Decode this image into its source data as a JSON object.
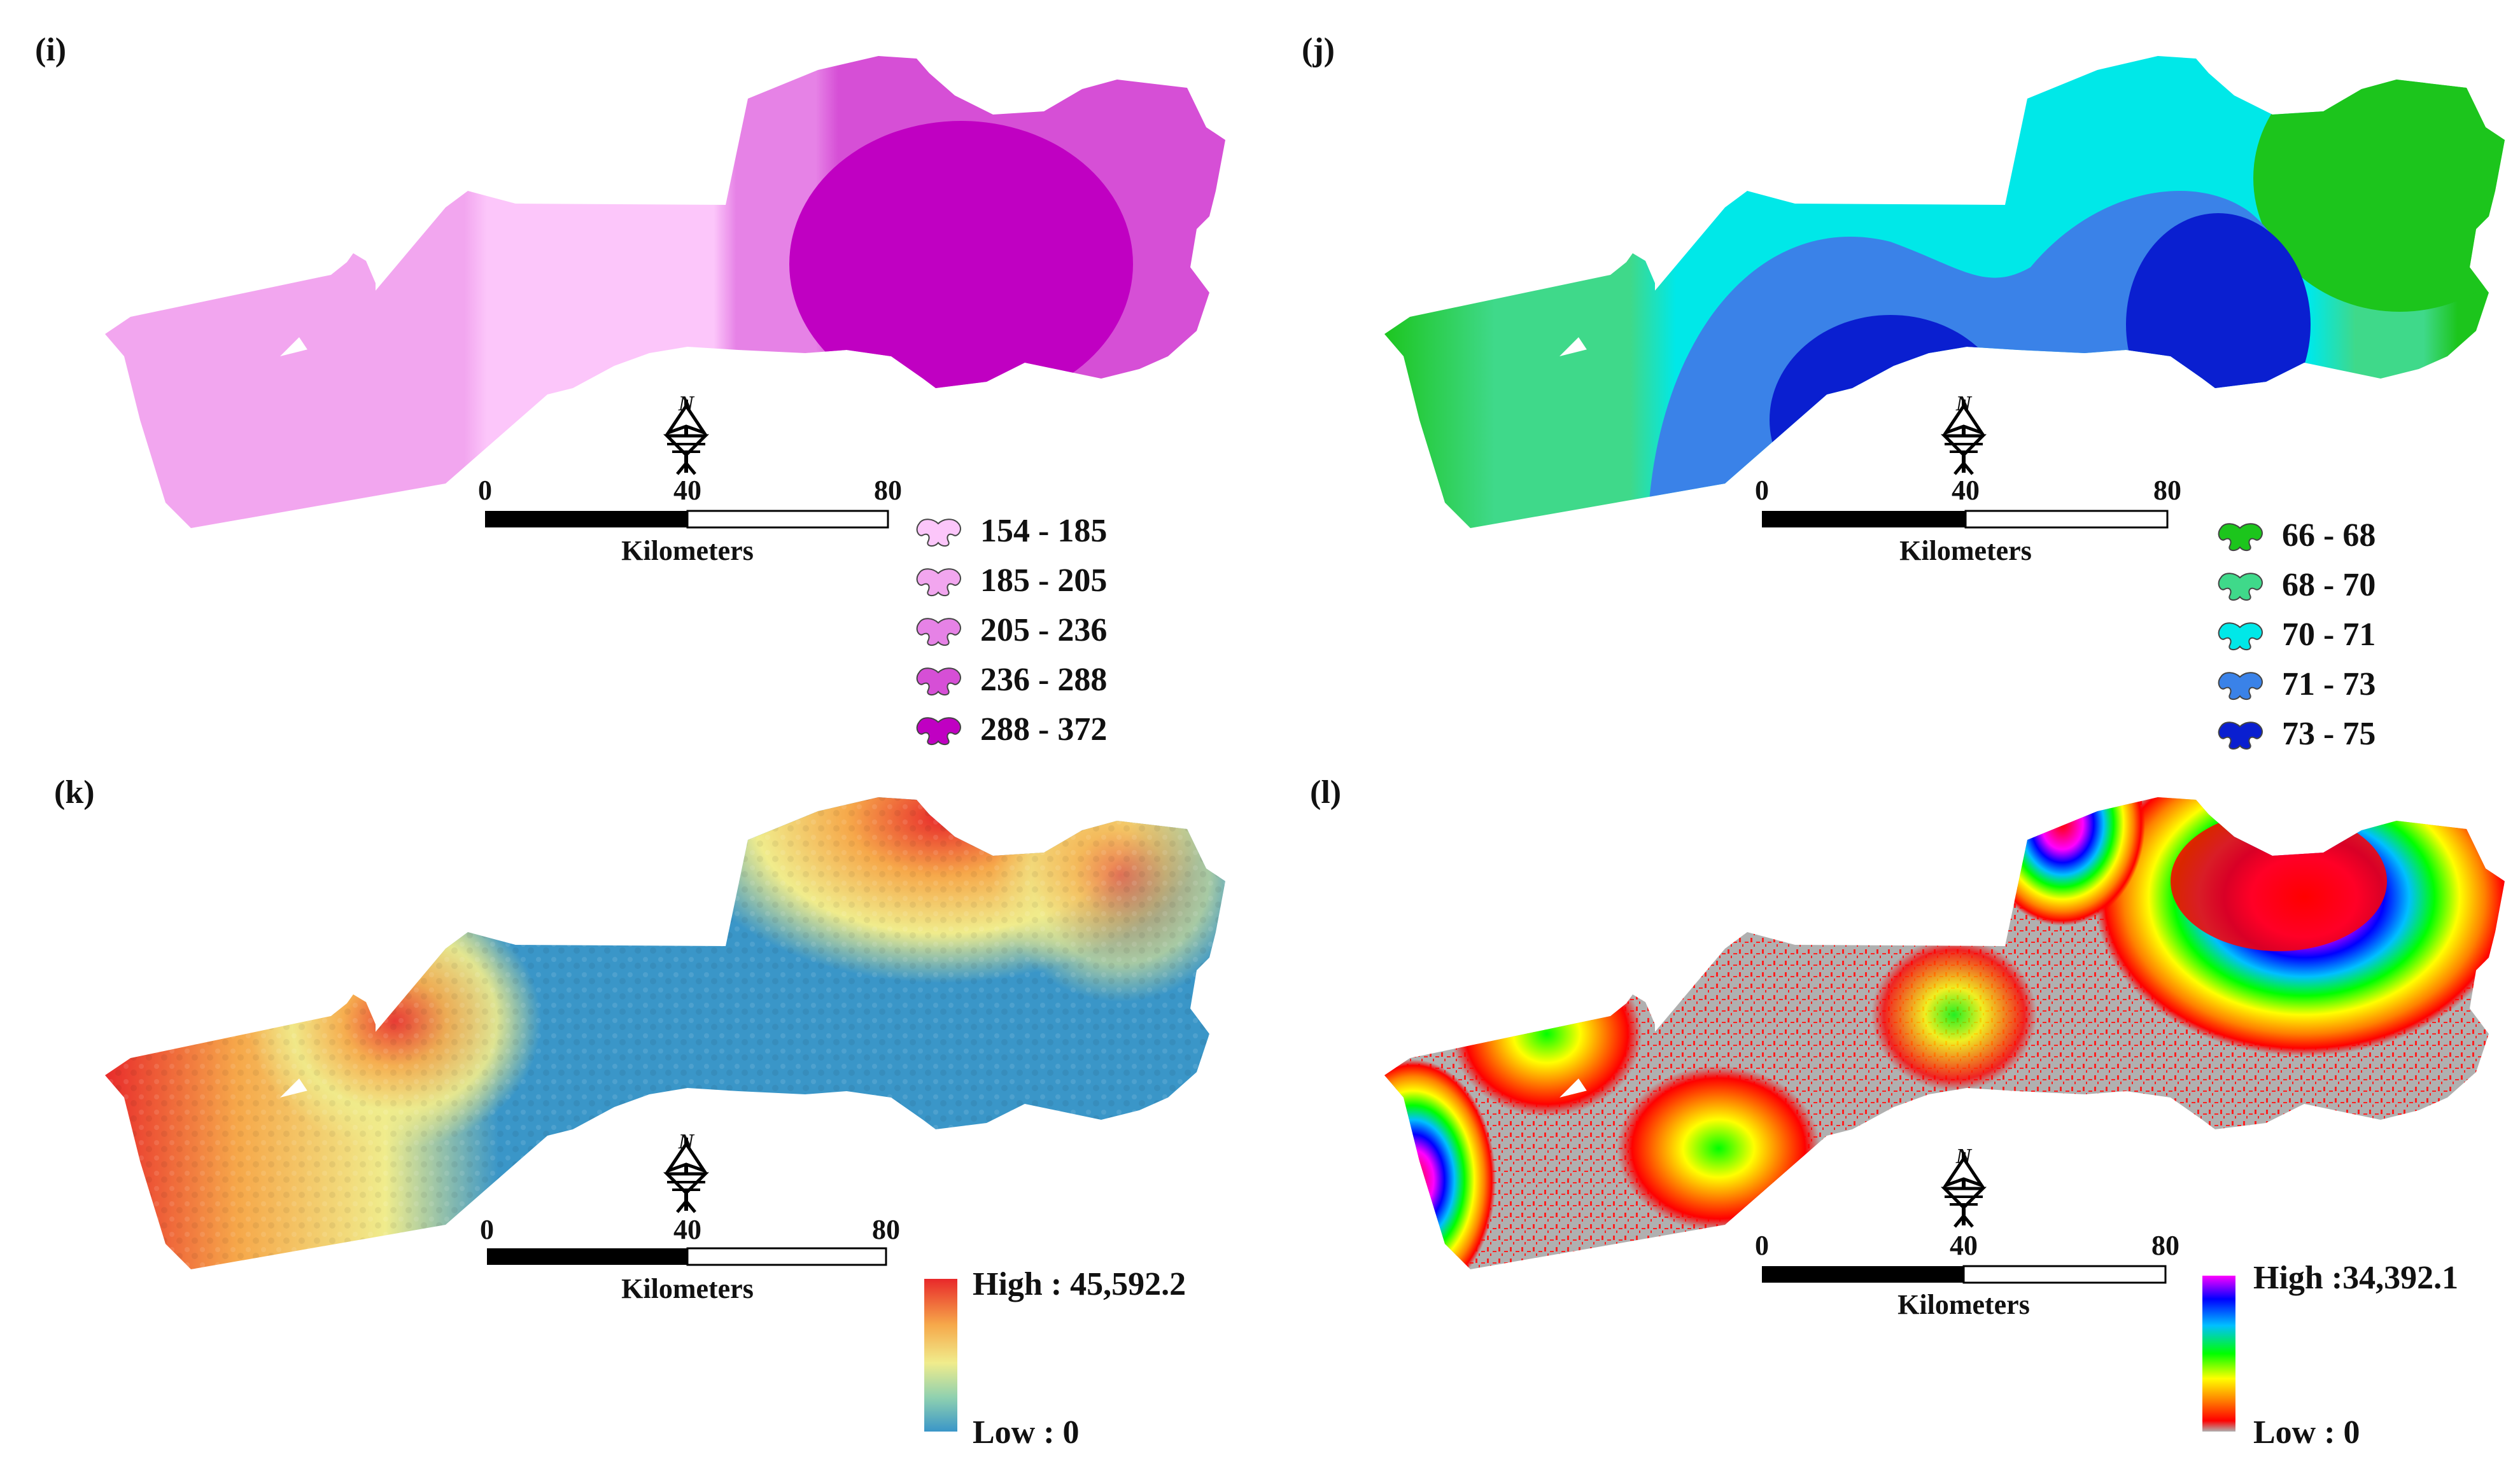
{
  "scale_bar": {
    "ticks": [
      "0",
      "40",
      "80"
    ],
    "unit": "Kilometers"
  },
  "north_arrow": {
    "letter": "N",
    "icon": "north-arrow-icon"
  },
  "panels": [
    {
      "id": "i",
      "label": "(i)",
      "legend_type": "classes",
      "classes": [
        {
          "label": "154 - 185",
          "color": "#fcc6fa"
        },
        {
          "label": "185 - 205",
          "color": "#f2a6ef"
        },
        {
          "label": "205 - 236",
          "color": "#e682e6"
        },
        {
          "label": "236 - 288",
          "color": "#d64fd6"
        },
        {
          "label": "288 - 372",
          "color": "#c000c2"
        }
      ]
    },
    {
      "id": "j",
      "label": "(j)",
      "legend_type": "classes",
      "classes": [
        {
          "label": "66 - 68",
          "color": "#1cc51c"
        },
        {
          "label": "68 - 70",
          "color": "#3fd98a"
        },
        {
          "label": "70 - 71",
          "color": "#00e8e8"
        },
        {
          "label": "71 - 73",
          "color": "#3a82e8"
        },
        {
          "label": "73 - 75",
          "color": "#0a1fd0"
        }
      ]
    },
    {
      "id": "k",
      "label": "(k)",
      "legend_type": "ramp",
      "high_label": "High : 45,592.2",
      "low_label": "Low : 0",
      "ramp_colors": [
        "#e8282a",
        "#f6a84a",
        "#f0ec8c",
        "#8ed0b0",
        "#3a96c8"
      ]
    },
    {
      "id": "l",
      "label": "(l)",
      "legend_type": "ramp",
      "high_label": "High :34,392.1",
      "low_label": "Low : 0",
      "ramp_colors": [
        "#ff00ff",
        "#0000ff",
        "#00c0ff",
        "#00ff00",
        "#ffff00",
        "#ff8000",
        "#ff0000",
        "#b0b0b0"
      ]
    }
  ]
}
